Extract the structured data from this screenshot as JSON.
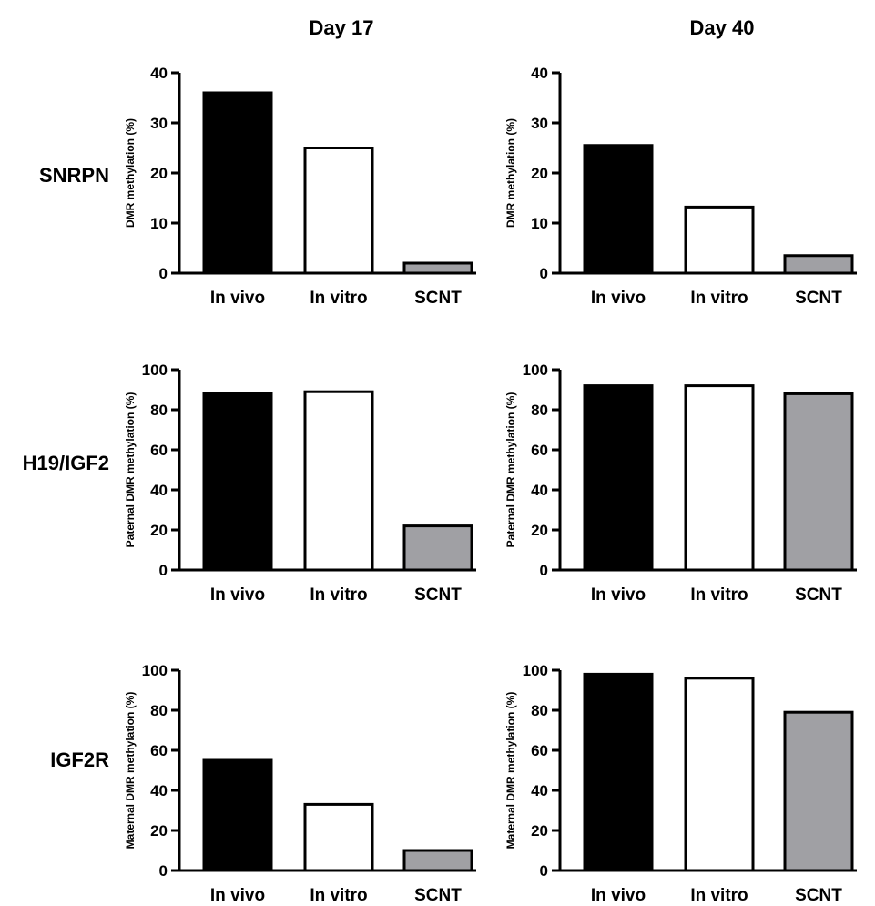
{
  "column_titles": [
    "Day 17",
    "Day 40"
  ],
  "row_labels": [
    "SNRPN",
    "H19/IGF2",
    "IGF2R"
  ],
  "colors": {
    "in_vivo": "#000000",
    "in_vitro": "#ffffff",
    "scnt": "#a0a0a4",
    "axis": "#000000"
  },
  "chart_data": [
    {
      "type": "bar",
      "row": "SNRPN",
      "column": "Day 17",
      "categories": [
        "In vivo",
        "In vitro",
        "SCNT"
      ],
      "values": [
        36,
        25,
        2
      ],
      "xlabel": "",
      "ylabel": "DMR methylation (%)",
      "ylim": [
        0,
        40
      ],
      "yticks": [
        0,
        10,
        20,
        30,
        40
      ],
      "grid": false
    },
    {
      "type": "bar",
      "row": "SNRPN",
      "column": "Day 40",
      "categories": [
        "In vivo",
        "In vitro",
        "SCNT"
      ],
      "values": [
        25.5,
        13.2,
        3.5
      ],
      "xlabel": "",
      "ylabel": "DMR methylation (%)",
      "ylim": [
        0,
        40
      ],
      "yticks": [
        0,
        10,
        20,
        30,
        40
      ],
      "grid": false
    },
    {
      "type": "bar",
      "row": "H19/IGF2",
      "column": "Day 17",
      "categories": [
        "In vivo",
        "In vitro",
        "SCNT"
      ],
      "values": [
        88,
        89,
        22
      ],
      "xlabel": "",
      "ylabel": "Paternal DMR methylation (%)",
      "ylim": [
        0,
        100
      ],
      "yticks": [
        0,
        20,
        40,
        60,
        80,
        100
      ],
      "grid": false
    },
    {
      "type": "bar",
      "row": "H19/IGF2",
      "column": "Day 40",
      "categories": [
        "In vivo",
        "In vitro",
        "SCNT"
      ],
      "values": [
        92,
        92,
        88
      ],
      "xlabel": "",
      "ylabel": "Paternal DMR methylation (%)",
      "ylim": [
        0,
        100
      ],
      "yticks": [
        0,
        20,
        40,
        60,
        80,
        100
      ],
      "grid": false
    },
    {
      "type": "bar",
      "row": "IGF2R",
      "column": "Day 17",
      "categories": [
        "In vivo",
        "In vitro",
        "SCNT"
      ],
      "values": [
        55,
        33,
        10
      ],
      "xlabel": "",
      "ylabel": "Maternal DMR methylation (%)",
      "ylim": [
        0,
        100
      ],
      "yticks": [
        0,
        20,
        40,
        60,
        80,
        100
      ],
      "grid": false
    },
    {
      "type": "bar",
      "row": "IGF2R",
      "column": "Day 40",
      "categories": [
        "In vivo",
        "In vitro",
        "SCNT"
      ],
      "values": [
        98,
        96,
        79
      ],
      "xlabel": "",
      "ylabel": "Maternal DMR methylation (%)",
      "ylim": [
        0,
        100
      ],
      "yticks": [
        0,
        20,
        40,
        60,
        80,
        100
      ],
      "grid": false
    }
  ]
}
